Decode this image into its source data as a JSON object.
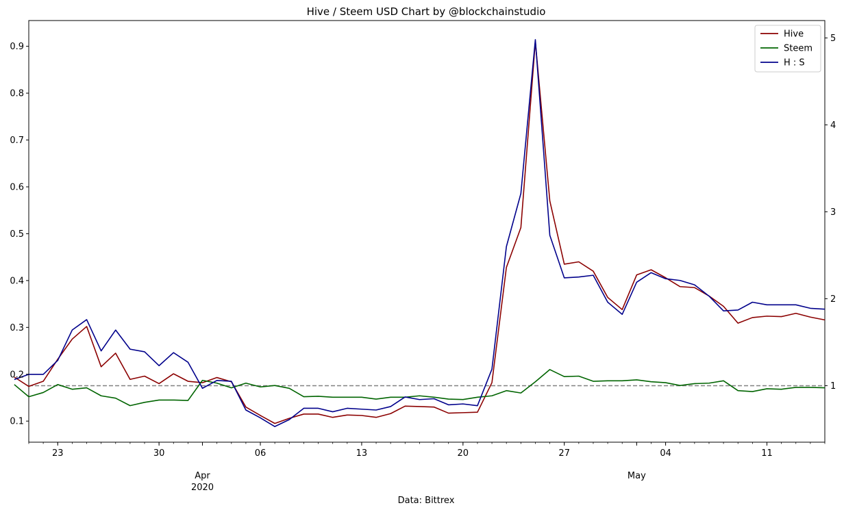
{
  "chart_data": {
    "type": "line",
    "title": "Hive / Steem USD Chart by @blockchainstudio",
    "xlabel": "Data: Bittrex",
    "ylabel_left": "",
    "ylabel_right": "",
    "x": [
      "2020-03-20",
      "2020-03-21",
      "2020-03-22",
      "2020-03-23",
      "2020-03-24",
      "2020-03-25",
      "2020-03-26",
      "2020-03-27",
      "2020-03-28",
      "2020-03-29",
      "2020-03-30",
      "2020-03-31",
      "2020-04-01",
      "2020-04-02",
      "2020-04-03",
      "2020-04-04",
      "2020-04-05",
      "2020-04-06",
      "2020-04-07",
      "2020-04-08",
      "2020-04-09",
      "2020-04-10",
      "2020-04-11",
      "2020-04-12",
      "2020-04-13",
      "2020-04-14",
      "2020-04-15",
      "2020-04-16",
      "2020-04-17",
      "2020-04-18",
      "2020-04-19",
      "2020-04-20",
      "2020-04-21",
      "2020-04-22",
      "2020-04-23",
      "2020-04-24",
      "2020-04-25",
      "2020-04-26",
      "2020-04-27",
      "2020-04-28",
      "2020-04-29",
      "2020-04-30",
      "2020-05-01",
      "2020-05-02",
      "2020-05-03",
      "2020-05-04",
      "2020-05-05",
      "2020-05-06",
      "2020-05-07",
      "2020-05-08",
      "2020-05-09",
      "2020-05-10",
      "2020-05-11",
      "2020-05-12",
      "2020-05-13",
      "2020-05-14",
      "2020-05-15"
    ],
    "x_ticks": [
      {
        "date": "2020-03-23",
        "label": "23"
      },
      {
        "date": "2020-03-30",
        "label": "30"
      },
      {
        "date": "2020-04-06",
        "label": "06"
      },
      {
        "date": "2020-04-13",
        "label": "13"
      },
      {
        "date": "2020-04-20",
        "label": "20"
      },
      {
        "date": "2020-04-27",
        "label": "27"
      },
      {
        "date": "2020-05-04",
        "label": "04"
      },
      {
        "date": "2020-05-11",
        "label": "11"
      }
    ],
    "x_major_labels": [
      {
        "date": "2020-04-02",
        "label": "Apr",
        "sublabel": "2020"
      },
      {
        "date": "2020-05-02",
        "label": "May",
        "sublabel": ""
      }
    ],
    "xlim": [
      "2020-03-21",
      "2020-05-15"
    ],
    "ylim_left": [
      0.055,
      0.955
    ],
    "yticks_left": [
      0.1,
      0.2,
      0.3,
      0.4,
      0.5,
      0.6,
      0.7,
      0.8,
      0.9
    ],
    "ylim_right": [
      0.35,
      5.2
    ],
    "yticks_right": [
      1,
      2,
      3,
      4,
      5
    ],
    "reference_line": {
      "axis": "right",
      "value": 1,
      "style": "dashed",
      "color": "#808080"
    },
    "legend_position": "top-right",
    "grid": false,
    "series": [
      {
        "name": "Hive",
        "axis": "left",
        "color": "#8b0000",
        "values": [
          0.194,
          0.174,
          0.185,
          0.232,
          0.275,
          0.302,
          0.216,
          0.245,
          0.189,
          0.196,
          0.18,
          0.201,
          0.185,
          0.182,
          0.193,
          0.184,
          0.13,
          0.112,
          0.095,
          0.106,
          0.115,
          0.115,
          0.108,
          0.113,
          0.112,
          0.108,
          0.116,
          0.132,
          0.131,
          0.13,
          0.117,
          0.118,
          0.119,
          0.182,
          0.428,
          0.513,
          0.91,
          0.57,
          0.435,
          0.44,
          0.42,
          0.364,
          0.338,
          0.412,
          0.423,
          0.406,
          0.387,
          0.385,
          0.367,
          0.345,
          0.309,
          0.321,
          0.324,
          0.323,
          0.33,
          0.322,
          0.316
        ]
      },
      {
        "name": "Steem",
        "axis": "left",
        "color": "#006400",
        "values": [
          0.178,
          0.152,
          0.161,
          0.178,
          0.168,
          0.171,
          0.154,
          0.149,
          0.133,
          0.14,
          0.145,
          0.145,
          0.144,
          0.187,
          0.181,
          0.171,
          0.181,
          0.173,
          0.176,
          0.17,
          0.152,
          0.153,
          0.151,
          0.151,
          0.151,
          0.147,
          0.151,
          0.151,
          0.154,
          0.151,
          0.147,
          0.146,
          0.151,
          0.154,
          0.165,
          0.16,
          0.184,
          0.21,
          0.195,
          0.196,
          0.185,
          0.186,
          0.186,
          0.188,
          0.184,
          0.182,
          0.176,
          0.18,
          0.181,
          0.186,
          0.165,
          0.163,
          0.169,
          0.168,
          0.172,
          0.172,
          0.171
        ]
      },
      {
        "name": "H : S",
        "axis": "right",
        "color": "#00008b",
        "values": [
          1.07,
          1.13,
          1.13,
          1.29,
          1.64,
          1.76,
          1.4,
          1.64,
          1.42,
          1.39,
          1.23,
          1.38,
          1.27,
          0.97,
          1.06,
          1.05,
          0.72,
          0.63,
          0.53,
          0.61,
          0.74,
          0.74,
          0.7,
          0.74,
          0.73,
          0.72,
          0.76,
          0.87,
          0.84,
          0.85,
          0.78,
          0.79,
          0.77,
          1.19,
          2.6,
          3.21,
          4.98,
          2.73,
          2.24,
          2.25,
          2.27,
          1.96,
          1.82,
          2.19,
          2.3,
          2.23,
          2.21,
          2.16,
          2.03,
          1.86,
          1.87,
          1.96,
          1.93,
          1.93,
          1.93,
          1.89,
          1.88
        ]
      }
    ]
  }
}
